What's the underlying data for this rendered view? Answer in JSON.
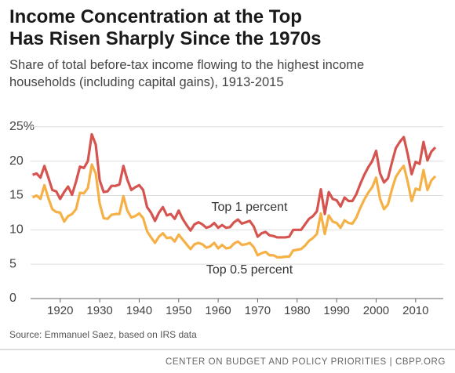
{
  "chart_data": {
    "type": "line",
    "title": "Income Concentration at the Top Has Risen Sharply Since the 1970s",
    "subtitle": "Share of total before-tax income flowing to the highest income households (including capital gains), 1913-2015",
    "x": [
      1913,
      1914,
      1915,
      1916,
      1917,
      1918,
      1919,
      1920,
      1921,
      1922,
      1923,
      1924,
      1925,
      1926,
      1927,
      1928,
      1929,
      1930,
      1931,
      1932,
      1933,
      1934,
      1935,
      1936,
      1937,
      1938,
      1939,
      1940,
      1941,
      1942,
      1943,
      1944,
      1945,
      1946,
      1947,
      1948,
      1949,
      1950,
      1951,
      1952,
      1953,
      1954,
      1955,
      1956,
      1957,
      1958,
      1959,
      1960,
      1961,
      1962,
      1963,
      1964,
      1965,
      1966,
      1967,
      1968,
      1969,
      1970,
      1971,
      1972,
      1973,
      1974,
      1975,
      1976,
      1977,
      1978,
      1979,
      1980,
      1981,
      1982,
      1983,
      1984,
      1985,
      1986,
      1987,
      1988,
      1989,
      1990,
      1991,
      1992,
      1993,
      1994,
      1995,
      1996,
      1997,
      1998,
      1999,
      2000,
      2001,
      2002,
      2003,
      2004,
      2005,
      2006,
      2007,
      2008,
      2009,
      2010,
      2011,
      2012,
      2013,
      2014,
      2015
    ],
    "series": [
      {
        "name": "Top 1 percent",
        "color": "#d6544f",
        "values": [
          18.0,
          18.2,
          17.6,
          19.3,
          17.6,
          15.8,
          15.6,
          14.5,
          15.5,
          16.3,
          15.1,
          17.0,
          19.2,
          19.0,
          20.0,
          23.9,
          22.4,
          17.2,
          15.5,
          15.6,
          16.4,
          16.4,
          16.6,
          19.3,
          17.3,
          15.8,
          16.2,
          16.5,
          15.8,
          13.3,
          12.5,
          11.3,
          12.5,
          13.3,
          12.1,
          12.3,
          11.6,
          12.8,
          11.6,
          10.7,
          9.9,
          10.8,
          11.1,
          10.8,
          10.3,
          10.5,
          11.0,
          10.3,
          10.7,
          10.3,
          10.4,
          11.1,
          11.5,
          10.9,
          11.1,
          11.3,
          10.5,
          9.0,
          9.5,
          9.7,
          9.2,
          9.1,
          8.9,
          8.9,
          8.9,
          9.0,
          10.0,
          10.0,
          10.0,
          10.8,
          11.6,
          12.0,
          12.7,
          15.9,
          12.3,
          15.5,
          14.5,
          14.3,
          13.4,
          14.7,
          14.2,
          14.2,
          15.2,
          16.7,
          18.0,
          19.1,
          20.0,
          21.5,
          18.2,
          16.9,
          17.5,
          19.8,
          21.9,
          22.8,
          23.5,
          21.0,
          18.1,
          19.9,
          19.6,
          22.8,
          20.1,
          21.4,
          22.0
        ]
      },
      {
        "name": "Top 0.5 percent",
        "color": "#f5b046",
        "values": [
          14.7,
          15.0,
          14.5,
          16.5,
          14.6,
          13.0,
          12.6,
          12.5,
          11.2,
          12.0,
          12.3,
          13.0,
          15.4,
          15.3,
          16.1,
          19.5,
          18.2,
          13.8,
          11.7,
          11.6,
          12.2,
          12.3,
          12.3,
          14.9,
          12.8,
          11.8,
          12.0,
          12.4,
          11.7,
          9.8,
          8.9,
          8.1,
          9.0,
          9.5,
          8.8,
          8.9,
          8.3,
          9.3,
          8.6,
          7.9,
          7.2,
          7.9,
          8.1,
          7.9,
          7.4,
          7.6,
          8.1,
          7.3,
          7.8,
          7.3,
          7.4,
          8.0,
          8.3,
          7.8,
          7.9,
          8.1,
          7.5,
          6.3,
          6.6,
          6.8,
          6.3,
          6.3,
          6.0,
          6.0,
          6.1,
          6.1,
          7.0,
          7.1,
          7.2,
          7.7,
          8.4,
          8.8,
          9.4,
          12.4,
          9.4,
          12.1,
          11.2,
          11.0,
          10.3,
          11.4,
          11.0,
          10.9,
          11.8,
          13.2,
          14.4,
          15.4,
          16.2,
          17.6,
          14.5,
          13.0,
          13.7,
          15.9,
          17.7,
          18.6,
          19.3,
          17.0,
          14.2,
          16.0,
          15.8,
          18.7,
          15.8,
          17.2,
          17.8
        ]
      }
    ],
    "xlim": [
      1912.5,
      2016
    ],
    "xticks": [
      1920,
      1930,
      1940,
      1950,
      1960,
      1970,
      1980,
      1990,
      2000,
      2010
    ],
    "ylim": [
      0,
      26
    ],
    "yticks": [
      0,
      5,
      10,
      15,
      20,
      {
        "value": 25,
        "label": "25%"
      }
    ],
    "grid": true,
    "source": "Source: Emmanuel Saez, based on IRS data",
    "footer": "CENTER ON BUDGET AND POLICY PRIORITIES | CBPP.ORG"
  }
}
